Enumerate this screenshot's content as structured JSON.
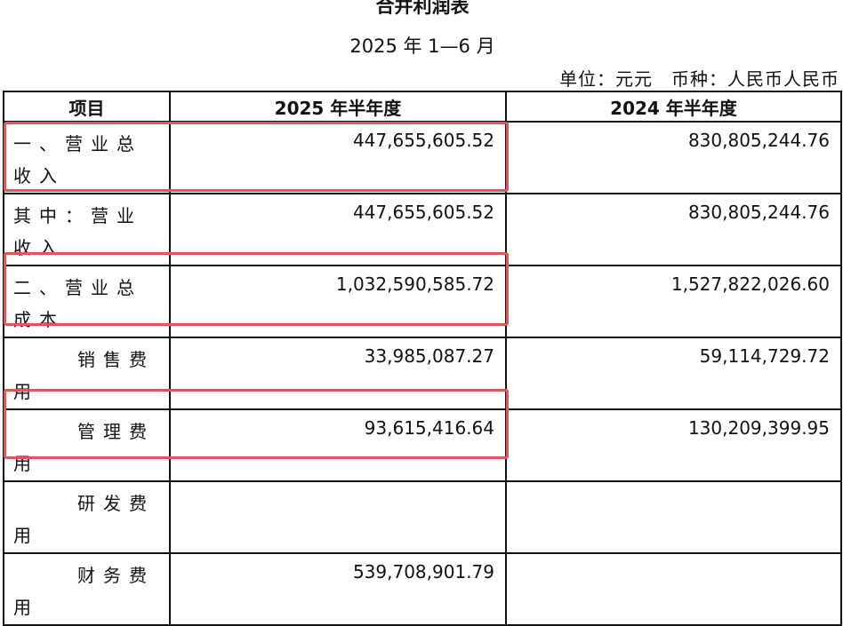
{
  "title": "合并利润表",
  "period": "2025 年 1—6 月",
  "unit_text": "单位：元元　币种：人民币人民币",
  "columns": [
    "项目",
    "2025 年半年度",
    "2024 年半年度"
  ],
  "rows": [
    {
      "item": "一、营业总收入",
      "cur": "447,655,605.52",
      "prev": "830,805,244.76",
      "highlighted": true
    },
    {
      "item": "其中：营业收入",
      "cur": "447,655,605.52",
      "prev": "830,805,244.76",
      "highlighted": false
    },
    {
      "item": "二、营业总成本",
      "cur": "1,032,590,585.72",
      "prev": "1,527,822,026.60",
      "highlighted": true
    },
    {
      "item": "销售费用",
      "cur": "33,985,087.27",
      "prev": "59,114,729.72",
      "highlighted": false
    },
    {
      "item": "管理费用",
      "cur": "93,615,416.64",
      "prev": "130,209,399.95",
      "highlighted": true
    },
    {
      "item": "研发费用",
      "cur": "",
      "prev": "",
      "highlighted": false
    },
    {
      "item": "财务费用",
      "cur": "539,708,901.79",
      "prev": "",
      "highlighted": false
    }
  ],
  "highlight_color": "#e0545a"
}
